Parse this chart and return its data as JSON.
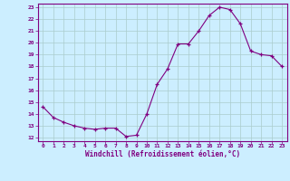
{
  "x": [
    0,
    1,
    2,
    3,
    4,
    5,
    6,
    7,
    8,
    9,
    10,
    11,
    12,
    13,
    14,
    15,
    16,
    17,
    18,
    19,
    20,
    21,
    22,
    23
  ],
  "y": [
    14.6,
    13.7,
    13.3,
    13.0,
    12.8,
    12.7,
    12.8,
    12.8,
    12.1,
    12.2,
    14.0,
    16.5,
    17.8,
    19.9,
    19.9,
    21.0,
    22.3,
    23.0,
    22.8,
    21.6,
    19.3,
    19.0,
    18.9,
    18.0
  ],
  "line_color": "#800080",
  "marker": "+",
  "marker_color": "#800080",
  "bg_color": "#cceeff",
  "grid_color": "#aacccc",
  "xlabel": "Windchill (Refroidissement éolien,°C)",
  "xlabel_color": "#800080",
  "tick_color": "#800080",
  "label_color": "#800080",
  "ylim_min": 12,
  "ylim_max": 23,
  "xlim_min": 0,
  "xlim_max": 23,
  "yticks": [
    12,
    13,
    14,
    15,
    16,
    17,
    18,
    19,
    20,
    21,
    22,
    23
  ],
  "xticks": [
    0,
    1,
    2,
    3,
    4,
    5,
    6,
    7,
    8,
    9,
    10,
    11,
    12,
    13,
    14,
    15,
    16,
    17,
    18,
    19,
    20,
    21,
    22,
    23
  ]
}
